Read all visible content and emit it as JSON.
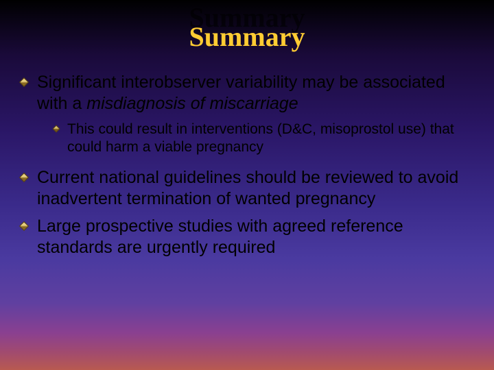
{
  "slide": {
    "title": "Summary",
    "title_color": "#ffcc33",
    "title_fontsize": 40,
    "title_font": "Times New Roman",
    "background_gradient": [
      "#000000",
      "#1a0a3a",
      "#2a1666",
      "#3a2a8a",
      "#4a3aa0",
      "#6040a0",
      "#8a4090",
      "#a04a70",
      "#b85a50"
    ],
    "body_font": "Arial",
    "body_color": "#000000",
    "body_fontsize_main": 25,
    "body_fontsize_sub": 21,
    "bullet_color_main": "#e8d080",
    "bullet_color_sub": "#d8c070",
    "bullets": [
      {
        "text_plain": "Significant interobserver variability may be associated with a ",
        "text_italic": "misdiagnosis of miscarriage",
        "sub": [
          {
            "text": "This could result in interventions (D&C, misoprostol use) that could harm a viable pregnancy"
          }
        ]
      },
      {
        "text_plain": "Current national guidelines should be reviewed to avoid inadvertent termination of wanted pregnancy"
      },
      {
        "text_plain": "Large prospective studies with agreed reference standards are urgently required"
      }
    ]
  }
}
